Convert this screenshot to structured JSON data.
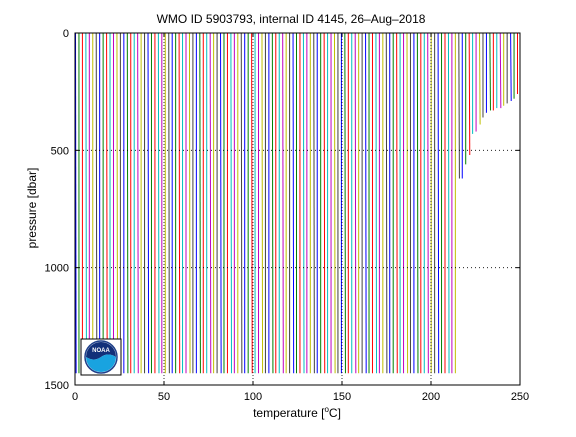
{
  "chart_data": {
    "type": "line",
    "title": "WMO ID 5903793, internal ID 4145, 26–Aug–2018",
    "xlabel": "temperature [",
    "xlabel_unit": "o",
    "xlabel_tail": "C]",
    "ylabel": "pressure [dbar]",
    "xlim": [
      0,
      250
    ],
    "ylim": [
      1500,
      0
    ],
    "y_reversed": true,
    "grid": true,
    "x_ticks": [
      0,
      50,
      100,
      150,
      200,
      250
    ],
    "y_ticks": [
      0,
      500,
      1000,
      1500
    ],
    "x_tick_labels": [
      "0",
      "50",
      "100",
      "150",
      "200",
      "250"
    ],
    "y_tick_labels": [
      "0",
      "500",
      "1000",
      "1500"
    ],
    "reference_line_x": 200,
    "series_colors": [
      "#0000ff",
      "#008000",
      "#ff0000",
      "#00bfbf",
      "#bf00bf",
      "#bfbf00",
      "#404040"
    ],
    "profiles": {
      "count": 129,
      "first_x": 0,
      "spacing_x": 1.94,
      "note_depth_deep": 1450,
      "shallow_tail_depths": [
        620,
        620,
        560,
        520,
        430,
        420,
        390,
        360,
        340,
        330,
        330,
        320,
        320,
        310,
        300,
        290,
        280,
        260
      ]
    },
    "logo_text": "NOAA"
  }
}
